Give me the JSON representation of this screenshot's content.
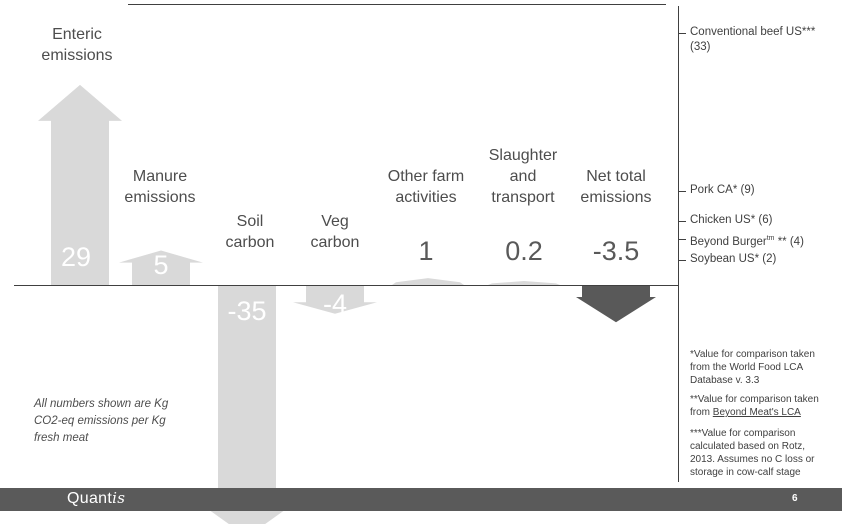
{
  "chart_data": {
    "type": "waterfall",
    "categories": [
      {
        "label": "Enteric emissions",
        "value": 29
      },
      {
        "label": "Manure emissions",
        "value": 5
      },
      {
        "label": "Soil carbon",
        "value": -35
      },
      {
        "label": "Veg carbon",
        "value": -4
      },
      {
        "label": "Other farm activities",
        "value": 1
      },
      {
        "label": "Slaughter and transport",
        "value": 0.2
      },
      {
        "label": "Net total emissions",
        "value": -3.5
      }
    ],
    "value_labels": [
      "29",
      "5",
      "-35",
      "-4",
      "1",
      "0.2",
      "-3.5"
    ],
    "comparisons": [
      {
        "label_line1": "Conventional beef US***",
        "label_line2": "(33)",
        "value": 33
      },
      {
        "label_line1": "Pork CA* (9)",
        "value": 9
      },
      {
        "label_line1": "Chicken US* (6)",
        "value": 6
      },
      {
        "label_line1": "Beyond Burger",
        "sup": "tm",
        "label_after_sup": " ** (4)",
        "value": 4
      },
      {
        "label_line1": "Soybean US* (2)",
        "value": 2
      }
    ],
    "colors": {
      "positive": "#d9d9d9",
      "negative": "#d9d9d9",
      "net": "#595959"
    }
  },
  "labels": {
    "enteric_1": "Enteric",
    "enteric_2": "emissions",
    "manure_1": "Manure",
    "manure_2": "emissions",
    "soil_1": "Soil",
    "soil_2": "carbon",
    "veg_1": "Veg",
    "veg_2": "carbon",
    "other_1": "Other farm",
    "other_2": "activities",
    "slaughter_1": "Slaughter",
    "slaughter_2": "and",
    "slaughter_3": "transport",
    "net_1": "Net total",
    "net_2": "emissions"
  },
  "note": {
    "line1": "All numbers shown are Kg",
    "line2": "CO2-eq emissions per Kg",
    "line3": "fresh meat"
  },
  "footnotes": {
    "f1_a": "*Value for comparison taken",
    "f1_b": "from the World Food LCA",
    "f1_c": "Database v. 3.3",
    "f2_a": "**Value for comparison taken",
    "f2_b_prefix": "from ",
    "f2_b_link": "Beyond Meat's LCA",
    "f3_a": "***Value for comparison",
    "f3_b": "calculated based on Rotz,",
    "f3_c": "2013. Assumes no C loss or",
    "f3_d": "storage in cow-calf stage"
  },
  "footer": {
    "logo_prefix": "Quant",
    "logo_suffix": "is",
    "page_number": "6"
  }
}
